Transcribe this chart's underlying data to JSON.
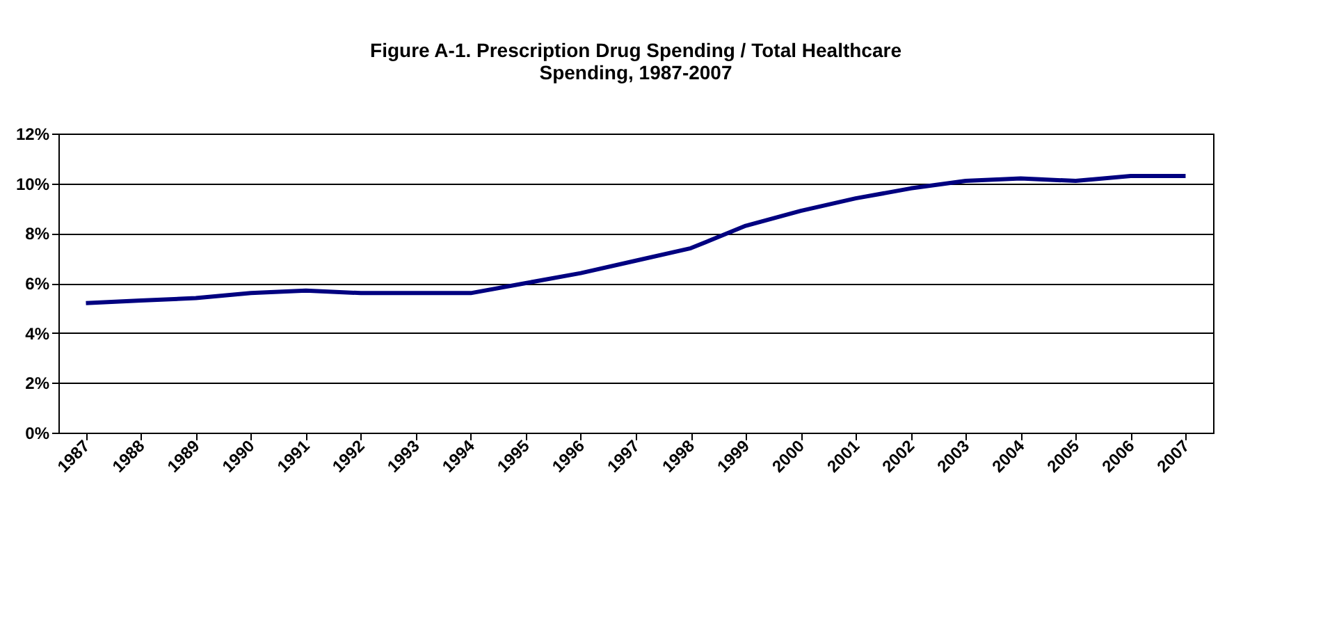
{
  "chart_data": {
    "type": "line",
    "title": [
      "Figure A-1.  Prescription Drug Spending / Total Healthcare",
      "Spending, 1987-2007"
    ],
    "categories": [
      "1987",
      "1988",
      "1989",
      "1990",
      "1991",
      "1992",
      "1993",
      "1994",
      "1995",
      "1996",
      "1997",
      "1998",
      "1999",
      "2000",
      "2001",
      "2002",
      "2003",
      "2004",
      "2005",
      "2006",
      "2007"
    ],
    "series": [
      {
        "color": "#000080",
        "values": [
          5.2,
          5.3,
          5.4,
          5.6,
          5.7,
          5.6,
          5.6,
          5.6,
          6.0,
          6.4,
          6.9,
          7.4,
          8.3,
          8.9,
          9.4,
          9.8,
          10.1,
          10.2,
          10.1,
          10.3,
          10.3
        ]
      }
    ],
    "ylim": [
      0,
      12
    ],
    "yticks": [
      {
        "value": 0,
        "label": "0%"
      },
      {
        "value": 2,
        "label": "2%"
      },
      {
        "value": 4,
        "label": "4%"
      },
      {
        "value": 6,
        "label": "6%"
      },
      {
        "value": 8,
        "label": "8%"
      },
      {
        "value": 10,
        "label": "10%"
      },
      {
        "value": 12,
        "label": "12%"
      }
    ],
    "grid": "y",
    "legend": false,
    "marker": "none",
    "line_style": "solid"
  }
}
